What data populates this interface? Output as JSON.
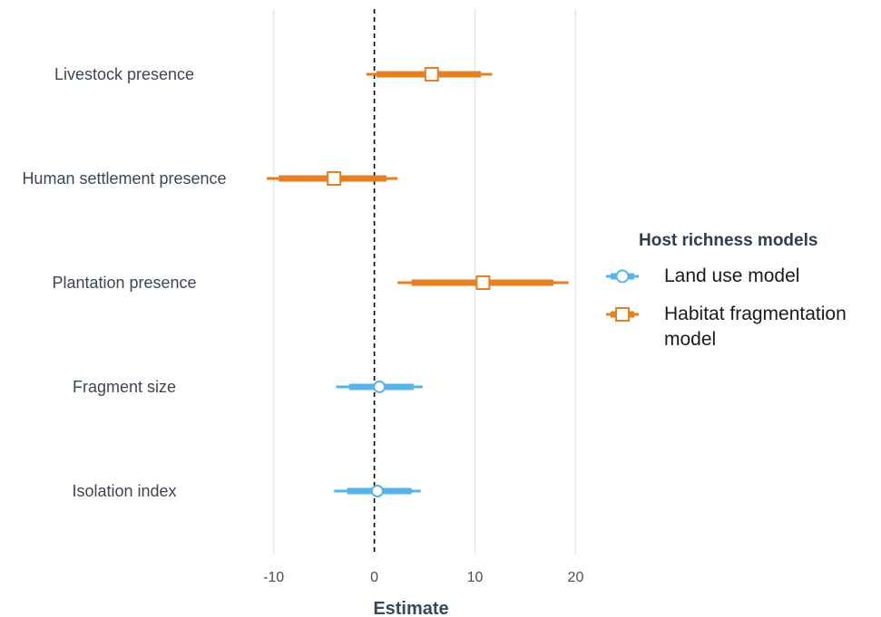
{
  "chart_data": {
    "type": "forest",
    "xlabel": "Estimate",
    "xlim": [
      -11.5,
      20.5
    ],
    "xticks": [
      -10,
      0,
      10,
      20
    ],
    "grid": "vertical",
    "reference_line": 0,
    "legend_title": "Host richness models",
    "legend_placement": "right",
    "series": [
      {
        "name": "Land use model",
        "color": "#56b4e9",
        "marker": "circle"
      },
      {
        "name": "Habitat fragmentation model",
        "color": "#e67e22",
        "marker": "square"
      }
    ],
    "rows": [
      {
        "label": "Livestock presence",
        "series": 1,
        "estimate": 5.7,
        "inner": [
          0.2,
          10.6
        ],
        "outer": [
          -0.8,
          11.7
        ]
      },
      {
        "label": "Human settlement presence",
        "series": 1,
        "estimate": -4.0,
        "inner": [
          -9.5,
          1.2
        ],
        "outer": [
          -10.7,
          2.3
        ]
      },
      {
        "label": "Plantation presence",
        "series": 1,
        "estimate": 10.8,
        "inner": [
          3.7,
          17.8
        ],
        "outer": [
          2.3,
          19.3
        ]
      },
      {
        "label": "Fragment size",
        "series": 0,
        "estimate": 0.5,
        "inner": [
          -2.5,
          3.9
        ],
        "outer": [
          -3.8,
          4.8
        ]
      },
      {
        "label": "Isolation index",
        "series": 0,
        "estimate": 0.3,
        "inner": [
          -2.7,
          3.7
        ],
        "outer": [
          -4.0,
          4.6
        ]
      }
    ]
  }
}
